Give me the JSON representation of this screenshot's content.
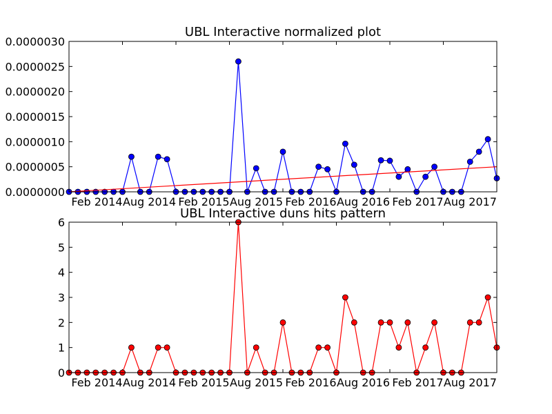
{
  "chart_data": [
    {
      "type": "line",
      "title": "UBL Interactive normalized plot",
      "xlabel": "",
      "ylabel": "",
      "ylim": [
        0,
        3e-06
      ],
      "y_ticks": [
        "0.0000000",
        "0.0000005",
        "0.0000010",
        "0.0000015",
        "0.0000020",
        "0.0000025",
        "0.0000030"
      ],
      "x_ticks": [
        "Feb 2014",
        "Aug 2014",
        "Feb 2015",
        "Aug 2015",
        "Feb 2016",
        "Aug 2016",
        "Feb 2017",
        "Aug 2017"
      ],
      "x_tick_index": [
        6,
        12,
        18,
        24,
        30,
        36,
        42,
        48
      ],
      "xlim_index": [
        0,
        48
      ],
      "series": [
        {
          "color": "#0000ff",
          "marker": "circle",
          "values": [
            0,
            0,
            0,
            0,
            0,
            0,
            0,
            7e-07,
            0,
            0,
            7e-07,
            6.5e-07,
            0,
            0,
            0,
            0,
            0,
            0,
            0,
            2.6e-06,
            0,
            4.7e-07,
            0,
            0,
            8e-07,
            0,
            0,
            0,
            5e-07,
            4.5e-07,
            0,
            9.6e-07,
            5.4e-07,
            0,
            0,
            6.3e-07,
            6.2e-07,
            3e-07,
            4.5e-07,
            0,
            3e-07,
            5e-07,
            0,
            0,
            0,
            6e-07,
            8e-07,
            1.05e-06,
            2.7e-07
          ]
        },
        {
          "color": "#ff0000",
          "marker": "none",
          "values_endpoints": [
            0,
            5e-07
          ]
        }
      ]
    },
    {
      "type": "line",
      "title": "UBL Interactive duns hits pattern",
      "xlabel": "",
      "ylabel": "",
      "ylim": [
        0,
        6
      ],
      "y_ticks": [
        "0",
        "1",
        "2",
        "3",
        "4",
        "5",
        "6"
      ],
      "x_ticks": [
        "Feb 2014",
        "Aug 2014",
        "Feb 2015",
        "Aug 2015",
        "Feb 2016",
        "Aug 2016",
        "Feb 2017",
        "Aug 2017"
      ],
      "x_tick_index": [
        6,
        12,
        18,
        24,
        30,
        36,
        42,
        48
      ],
      "xlim_index": [
        0,
        48
      ],
      "series": [
        {
          "color": "#ff0000",
          "marker": "circle",
          "values": [
            0,
            0,
            0,
            0,
            0,
            0,
            0,
            1,
            0,
            0,
            1,
            1,
            0,
            0,
            0,
            0,
            0,
            0,
            0,
            6,
            0,
            1,
            0,
            0,
            2,
            0,
            0,
            0,
            1,
            1,
            0,
            3,
            2,
            0,
            0,
            2,
            2,
            1,
            2,
            0,
            1,
            2,
            0,
            0,
            0,
            2,
            2,
            3,
            1
          ]
        }
      ]
    }
  ]
}
